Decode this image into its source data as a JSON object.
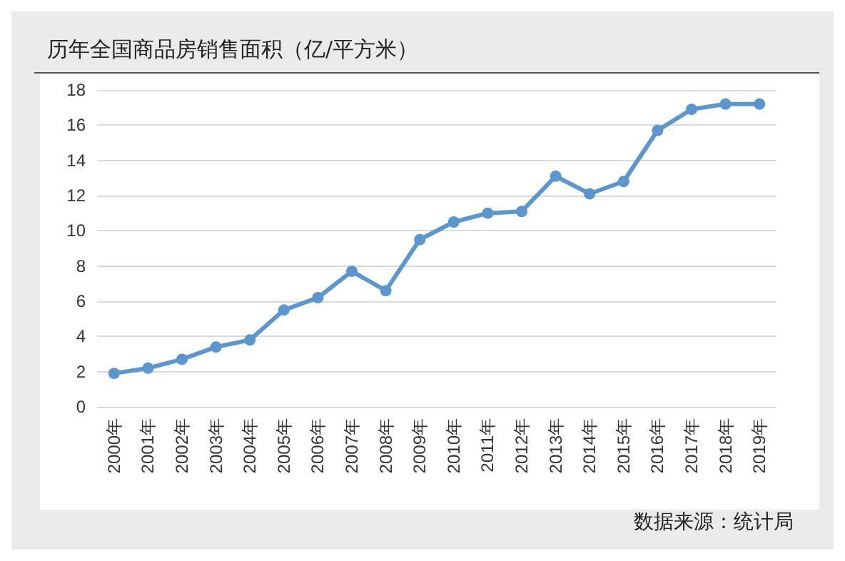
{
  "chart_data": {
    "type": "line",
    "title": "历年全国商品房销售面积（亿/平方米）",
    "categories": [
      "2000年",
      "2001年",
      "2002年",
      "2003年",
      "2004年",
      "2005年",
      "2006年",
      "2007年",
      "2008年",
      "2009年",
      "2010年",
      "2011年",
      "2012年",
      "2013年",
      "2014年",
      "2015年",
      "2016年",
      "2017年",
      "2018年",
      "2019年"
    ],
    "series": [
      {
        "color": "#5b96cf",
        "values": [
          1.9,
          2.2,
          2.7,
          3.4,
          3.8,
          5.5,
          6.2,
          7.7,
          6.6,
          9.5,
          10.5,
          11.0,
          11.1,
          13.1,
          12.1,
          12.8,
          15.7,
          16.9,
          17.2,
          17.2
        ]
      }
    ],
    "ylim": [
      0,
      18
    ],
    "yticks": [
      0,
      2,
      4,
      6,
      8,
      10,
      12,
      14,
      16,
      18
    ],
    "grid": "y",
    "marker": "circle",
    "line_style": "solid",
    "annotations": [
      "数据来源：统计局"
    ]
  }
}
